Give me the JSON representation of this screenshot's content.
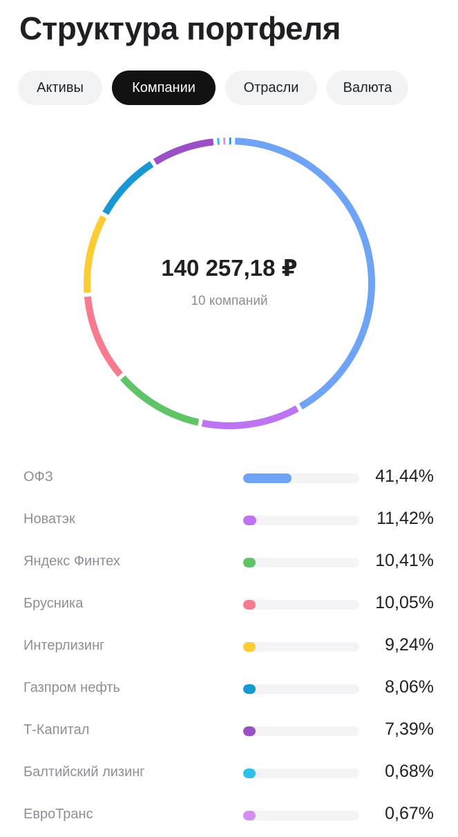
{
  "header": {
    "title": "Структура портфеля"
  },
  "tabs": [
    {
      "label": "Активы",
      "active": false
    },
    {
      "label": "Компании",
      "active": true
    },
    {
      "label": "Отрасли",
      "active": false
    },
    {
      "label": "Валюта",
      "active": false
    }
  ],
  "summary": {
    "total": "140 257,18 ₽",
    "count_label": "10 компаний"
  },
  "companies": [
    {
      "name": "ОФЗ",
      "percent": "41,44%",
      "value": 41.44,
      "color": "#6ea3f5"
    },
    {
      "name": "Новатэк",
      "percent": "11,42%",
      "value": 11.42,
      "color": "#bd74f2"
    },
    {
      "name": "Яндекс Финтех",
      "percent": "10,41%",
      "value": 10.41,
      "color": "#5ec465"
    },
    {
      "name": "Брусника",
      "percent": "10,05%",
      "value": 10.05,
      "color": "#f77b8e"
    },
    {
      "name": "Интерлизинг",
      "percent": "9,24%",
      "value": 9.24,
      "color": "#fccc35"
    },
    {
      "name": "Газпром нефть",
      "percent": "8,06%",
      "value": 8.06,
      "color": "#1797d4"
    },
    {
      "name": "Т-Капитал",
      "percent": "7,39%",
      "value": 7.39,
      "color": "#9a4fc4"
    },
    {
      "name": "Балтийский лизинг",
      "percent": "0,68%",
      "value": 0.68,
      "color": "#2fc0ea"
    },
    {
      "name": "ЕвроТранс",
      "percent": "0,67%",
      "value": 0.67,
      "color": "#d28ef2"
    },
    {
      "value": 0.64,
      "color": "#1a93cf"
    }
  ]
}
